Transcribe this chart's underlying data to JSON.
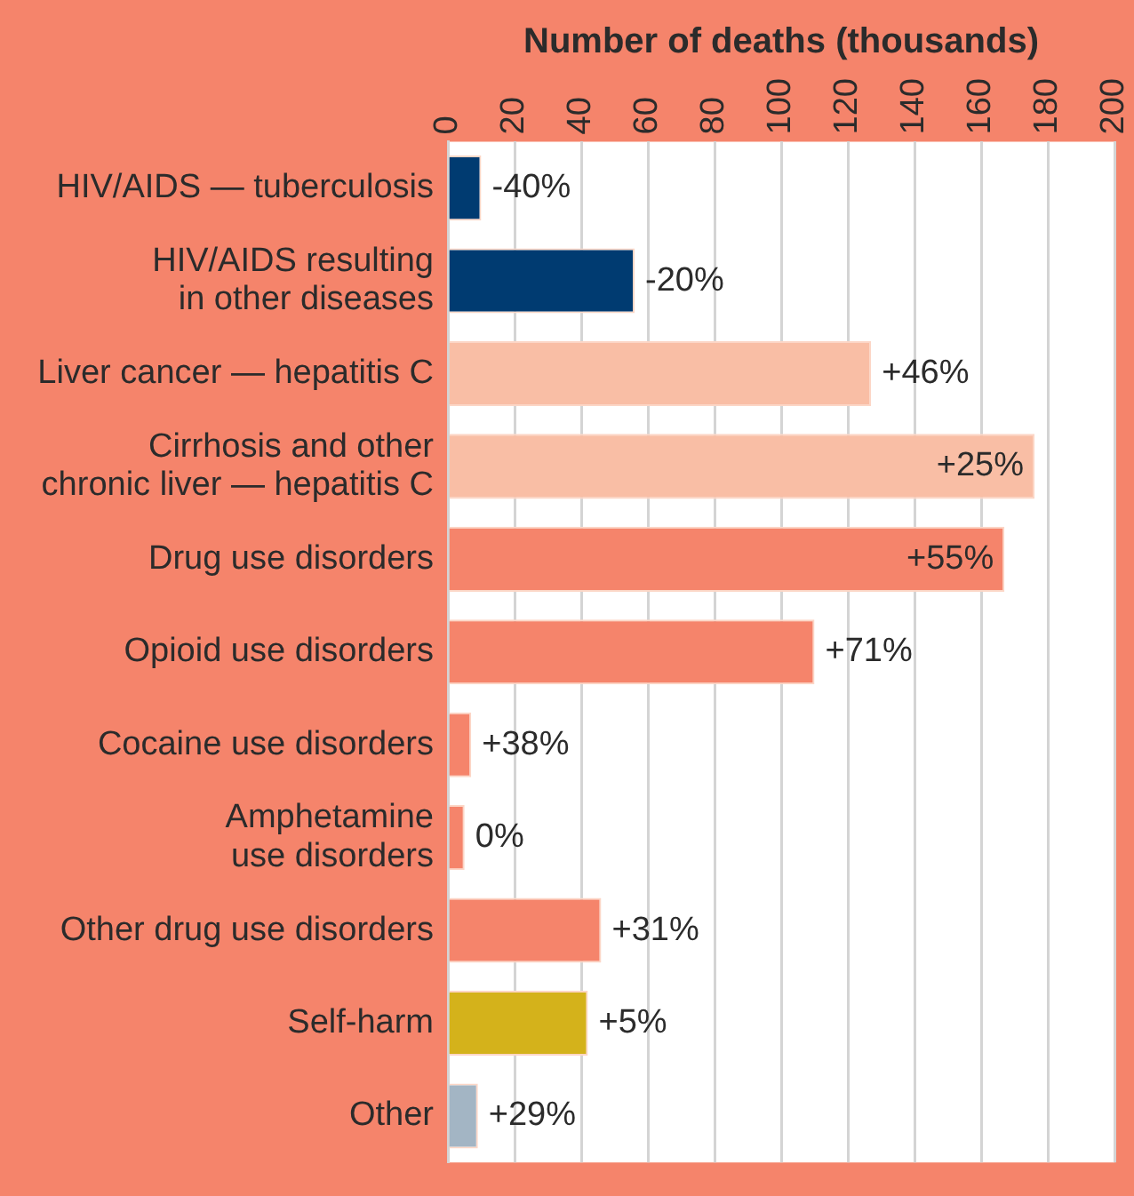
{
  "chart_data": {
    "type": "bar",
    "orientation": "horizontal",
    "xlabel": "Number of deaths (thousands)",
    "categories": [
      "HIV/AIDS — tuberculosis",
      "HIV/AIDS resulting in other diseases",
      "Liver cancer — hepatitis C",
      "Cirrhosis and other chronic liver — hepatitis C",
      "Drug use disorders",
      "Opioid use disorders",
      "Cocaine use disorders",
      "Amphetamine use disorders",
      "Other drug use disorders",
      "Self-harm",
      "Other"
    ],
    "values": [
      10,
      56,
      127,
      176,
      167,
      110,
      7,
      5,
      46,
      42,
      9
    ],
    "colors": [
      "#003b71",
      "#003b71",
      "#f9bea5",
      "#f9bea5",
      "#f5846b",
      "#f5846b",
      "#f5846b",
      "#f5846b",
      "#f5846b",
      "#d4b21b",
      "#a3b5c4"
    ],
    "annotations": [
      {
        "text": "-40%",
        "x": 10,
        "y": "HIV/AIDS — tuberculosis"
      },
      {
        "text": "-20%",
        "x": 56,
        "y": "HIV/AIDS resulting in other diseases"
      },
      {
        "text": "+46%",
        "x": 127,
        "y": "Liver cancer — hepatitis C"
      },
      {
        "text": "+25%",
        "x": 176,
        "y": "Cirrhosis and other chronic liver — hepatitis C"
      },
      {
        "text": "+55%",
        "x": 167,
        "y": "Drug use disorders"
      },
      {
        "text": "+71%",
        "x": 110,
        "y": "Opioid use disorders"
      },
      {
        "text": "+38%",
        "x": 7,
        "y": "Cocaine use disorders"
      },
      {
        "text": "0%",
        "x": 5,
        "y": "Amphetamine use disorders"
      },
      {
        "text": "+31%",
        "x": 46,
        "y": "Other drug use disorders"
      },
      {
        "text": "+5%",
        "x": 42,
        "y": "Self-harm"
      },
      {
        "text": "+29%",
        "x": 9,
        "y": "Other"
      }
    ],
    "xlim": [
      0,
      200
    ],
    "xticks": [
      0,
      20,
      40,
      60,
      80,
      100,
      120,
      140,
      160,
      180,
      200
    ],
    "grid": "x"
  }
}
